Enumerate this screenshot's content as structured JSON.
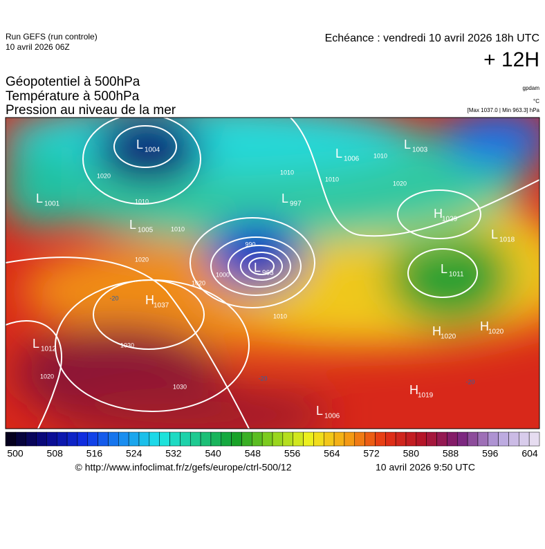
{
  "header": {
    "run": "Run GEFS (run controle)",
    "run_date": "10 avril 2026 06Z",
    "echeance": "Echéance : vendredi 10 avril 2026 18h UTC",
    "lead": "+ 12H"
  },
  "titles": [
    "Géopotentiel à 500hPa",
    "Température à 500hPa",
    "Pression au niveau de la mer"
  ],
  "units": {
    "geopotential": "gpdam",
    "temperature": "°C",
    "pressure": "[Max 1037.0 | Min 963.3] hPa"
  },
  "centers": [
    {
      "type": "L",
      "value": 1004
    },
    {
      "type": "L",
      "value": 1001
    },
    {
      "type": "L",
      "value": 1005
    },
    {
      "type": "L",
      "value": 997
    },
    {
      "type": "L",
      "value": 963
    },
    {
      "type": "L",
      "value": 1006
    },
    {
      "type": "L",
      "value": 1003
    },
    {
      "type": "H",
      "value": 1029
    },
    {
      "type": "L",
      "value": 1018
    },
    {
      "type": "L",
      "value": 1011
    },
    {
      "type": "H",
      "value": 1037
    },
    {
      "type": "L",
      "value": 1012
    },
    {
      "type": "H",
      "value": 1020
    },
    {
      "type": "H",
      "value": 1020
    },
    {
      "type": "H",
      "value": 1019
    },
    {
      "type": "L",
      "value": 1006
    }
  ],
  "isobar_labels": [
    1020,
    1010,
    1010,
    1020,
    1000,
    990,
    1010,
    1020,
    1030,
    1030,
    1020,
    1010,
    1010,
    1010,
    1020
  ],
  "temperature_labels": [
    -20,
    -20,
    -20
  ],
  "colorbar": {
    "ticks": [
      500,
      508,
      516,
      524,
      532,
      540,
      548,
      556,
      564,
      572,
      580,
      588,
      596,
      604
    ],
    "colors": [
      "#05001e",
      "#0a0a8c",
      "#1030e6",
      "#1a8cf0",
      "#1ee6e6",
      "#1ec88c",
      "#14a028",
      "#8cd21e",
      "#f0f01e",
      "#f5a014",
      "#e63214",
      "#b41428",
      "#781e78",
      "#b4a0dc",
      "#e6dcf0"
    ]
  },
  "footer": {
    "url": "© http://www.infoclimat.fr/z/gefs/europe/ctrl-500/12",
    "time": "10 avril 2026  9:50 UTC"
  }
}
